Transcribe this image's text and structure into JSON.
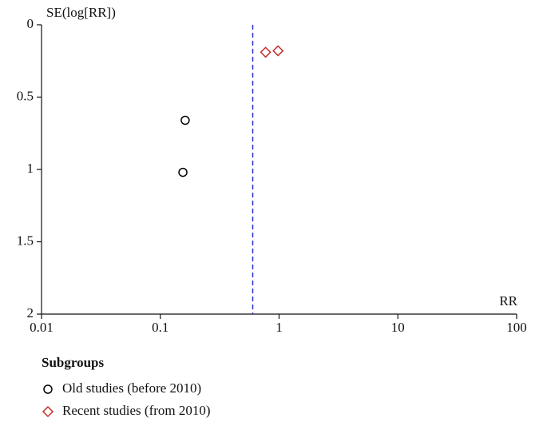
{
  "chart_data": {
    "type": "scatter",
    "y_label": "SE(log[RR])",
    "x_label": "RR",
    "x_scale": "log",
    "y_inverted": true,
    "xlim": [
      0.01,
      100
    ],
    "xticks": [
      0.01,
      0.1,
      1,
      10,
      100
    ],
    "ylim": [
      0,
      2
    ],
    "yticks": [
      0,
      0.5,
      1,
      1.5,
      2
    ],
    "reference_line": {
      "x": 0.6,
      "color": "#2233cc"
    },
    "legend_title": "Subgroups",
    "series": [
      {
        "name": "Old studies (before 2010)",
        "marker": "circle",
        "color": "#000000",
        "x": [
          0.162,
          0.155
        ],
        "values": [
          0.66,
          1.02
        ]
      },
      {
        "name": "Recent studies (from 2010)",
        "marker": "diamond",
        "color": "#c0302a",
        "x": [
          0.77,
          0.98
        ],
        "values": [
          0.19,
          0.18
        ]
      }
    ]
  }
}
